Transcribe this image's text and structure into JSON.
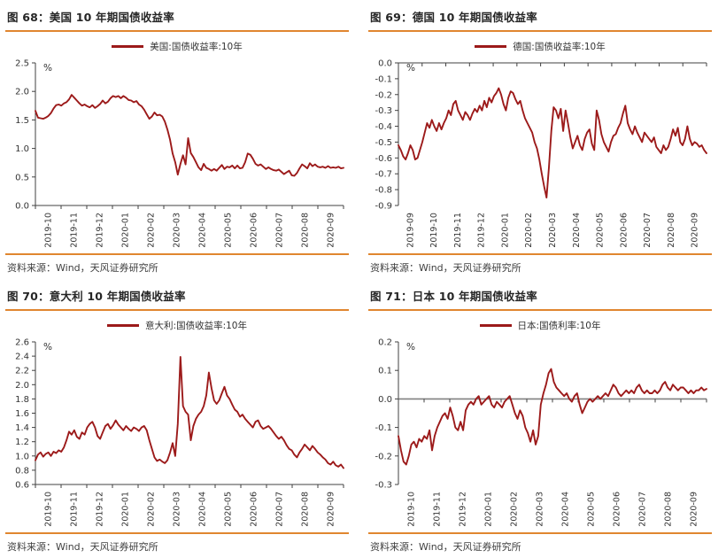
{
  "source_label": "资料来源：Wind，天风证券研究所",
  "colors": {
    "accent_orange": "#E0862F",
    "series_red": "#9C1A1A",
    "axis": "#404040",
    "zero_axis_gray": "#808080",
    "tick_text": "#333333"
  },
  "chart_data": [
    {
      "type": "line",
      "title": "图 68：美国 10 年期国债收益率",
      "legend": "美国:国债收益率:10年",
      "unit": "%",
      "ylim": [
        0.0,
        2.5
      ],
      "ytick": 0.5,
      "axis_at": 0.0,
      "axis_style": "dark",
      "legend_position": "top",
      "grid": false,
      "categories": [
        "2019-10",
        "2019-11",
        "2019-12",
        "2020-01",
        "2020-02",
        "2020-03",
        "2020-04",
        "2020-05",
        "2020-06",
        "2020-07",
        "2020-08",
        "2020-09"
      ],
      "values": [
        1.66,
        1.54,
        1.53,
        1.52,
        1.54,
        1.57,
        1.62,
        1.7,
        1.76,
        1.77,
        1.75,
        1.79,
        1.81,
        1.86,
        1.94,
        1.89,
        1.84,
        1.79,
        1.75,
        1.77,
        1.74,
        1.72,
        1.76,
        1.71,
        1.74,
        1.78,
        1.84,
        1.79,
        1.82,
        1.88,
        1.92,
        1.9,
        1.92,
        1.88,
        1.92,
        1.89,
        1.85,
        1.84,
        1.81,
        1.83,
        1.77,
        1.74,
        1.68,
        1.6,
        1.52,
        1.56,
        1.63,
        1.58,
        1.59,
        1.56,
        1.47,
        1.33,
        1.15,
        0.91,
        0.76,
        0.54,
        0.73,
        0.88,
        0.72,
        1.18,
        0.92,
        0.85,
        0.76,
        0.67,
        0.62,
        0.73,
        0.66,
        0.64,
        0.61,
        0.64,
        0.61,
        0.66,
        0.71,
        0.64,
        0.68,
        0.67,
        0.7,
        0.65,
        0.7,
        0.65,
        0.66,
        0.76,
        0.91,
        0.89,
        0.82,
        0.73,
        0.7,
        0.72,
        0.68,
        0.64,
        0.67,
        0.64,
        0.62,
        0.61,
        0.63,
        0.59,
        0.55,
        0.58,
        0.61,
        0.53,
        0.52,
        0.57,
        0.65,
        0.72,
        0.69,
        0.65,
        0.74,
        0.69,
        0.72,
        0.68,
        0.67,
        0.68,
        0.66,
        0.69,
        0.66,
        0.67,
        0.66,
        0.68,
        0.65,
        0.66
      ]
    },
    {
      "type": "line",
      "title": "图 69：德国 10 年期国债收益率",
      "legend": "德国:国债收益率:10年",
      "unit": "%",
      "ylim": [
        -0.9,
        0.0
      ],
      "ytick": 0.1,
      "axis_at": 0.0,
      "axis_style": "dark",
      "legend_position": "top",
      "grid": false,
      "categories": [
        "2019-09",
        "2019-10",
        "2019-11",
        "2019-12",
        "2020-01",
        "2020-02",
        "2020-03",
        "2020-04",
        "2020-05",
        "2020-06",
        "2020-07",
        "2020-08",
        "2020-09"
      ],
      "values": [
        -0.52,
        -0.55,
        -0.59,
        -0.61,
        -0.57,
        -0.52,
        -0.55,
        -0.61,
        -0.6,
        -0.55,
        -0.5,
        -0.44,
        -0.38,
        -0.41,
        -0.36,
        -0.4,
        -0.43,
        -0.38,
        -0.42,
        -0.38,
        -0.35,
        -0.3,
        -0.33,
        -0.26,
        -0.24,
        -0.3,
        -0.33,
        -0.36,
        -0.31,
        -0.33,
        -0.36,
        -0.32,
        -0.29,
        -0.31,
        -0.27,
        -0.3,
        -0.24,
        -0.28,
        -0.22,
        -0.25,
        -0.21,
        -0.19,
        -0.16,
        -0.2,
        -0.26,
        -0.3,
        -0.22,
        -0.18,
        -0.19,
        -0.23,
        -0.26,
        -0.24,
        -0.3,
        -0.35,
        -0.38,
        -0.41,
        -0.44,
        -0.5,
        -0.54,
        -0.61,
        -0.7,
        -0.78,
        -0.85,
        -0.66,
        -0.43,
        -0.28,
        -0.3,
        -0.35,
        -0.29,
        -0.43,
        -0.3,
        -0.38,
        -0.47,
        -0.54,
        -0.5,
        -0.46,
        -0.52,
        -0.55,
        -0.48,
        -0.44,
        -0.42,
        -0.51,
        -0.55,
        -0.3,
        -0.36,
        -0.45,
        -0.5,
        -0.53,
        -0.56,
        -0.5,
        -0.46,
        -0.45,
        -0.41,
        -0.38,
        -0.32,
        -0.27,
        -0.38,
        -0.42,
        -0.45,
        -0.4,
        -0.44,
        -0.47,
        -0.5,
        -0.44,
        -0.46,
        -0.48,
        -0.5,
        -0.47,
        -0.53,
        -0.55,
        -0.57,
        -0.52,
        -0.55,
        -0.53,
        -0.48,
        -0.42,
        -0.46,
        -0.41,
        -0.5,
        -0.52,
        -0.48,
        -0.4,
        -0.48,
        -0.52,
        -0.5,
        -0.51,
        -0.53,
        -0.52,
        -0.55,
        -0.57
      ]
    },
    {
      "type": "line",
      "title": "图 70：意大利 10 年期国债收益率",
      "legend": "意大利:国债收益率:10年",
      "unit": "%",
      "ylim": [
        0.6,
        2.6
      ],
      "ytick": 0.2,
      "axis_at": 0.6,
      "axis_style": "dark",
      "legend_position": "top",
      "grid": false,
      "categories": [
        "2019-10",
        "2019-11",
        "2019-12",
        "2020-01",
        "2020-02",
        "2020-03",
        "2020-04",
        "2020-05",
        "2020-06",
        "2020-07",
        "2020-08",
        "2020-09"
      ],
      "values": [
        0.94,
        1.02,
        1.05,
        0.99,
        1.03,
        1.05,
        1.0,
        1.06,
        1.04,
        1.08,
        1.06,
        1.12,
        1.22,
        1.34,
        1.3,
        1.36,
        1.27,
        1.24,
        1.33,
        1.3,
        1.4,
        1.45,
        1.48,
        1.4,
        1.28,
        1.24,
        1.33,
        1.42,
        1.45,
        1.38,
        1.43,
        1.5,
        1.44,
        1.4,
        1.36,
        1.42,
        1.38,
        1.35,
        1.4,
        1.38,
        1.35,
        1.4,
        1.42,
        1.36,
        1.22,
        1.1,
        0.98,
        0.93,
        0.95,
        0.92,
        0.9,
        0.94,
        1.05,
        1.18,
        1.0,
        1.45,
        2.39,
        1.7,
        1.62,
        1.58,
        1.22,
        1.42,
        1.52,
        1.58,
        1.62,
        1.7,
        1.85,
        2.17,
        1.95,
        1.78,
        1.73,
        1.78,
        1.88,
        1.97,
        1.85,
        1.8,
        1.72,
        1.65,
        1.62,
        1.55,
        1.58,
        1.52,
        1.48,
        1.44,
        1.4,
        1.48,
        1.5,
        1.42,
        1.38,
        1.4,
        1.42,
        1.38,
        1.33,
        1.28,
        1.24,
        1.27,
        1.22,
        1.15,
        1.1,
        1.08,
        1.02,
        0.98,
        1.05,
        1.1,
        1.16,
        1.12,
        1.08,
        1.14,
        1.1,
        1.05,
        1.02,
        0.98,
        0.95,
        0.9,
        0.88,
        0.92,
        0.87,
        0.85,
        0.88,
        0.83
      ]
    },
    {
      "type": "line",
      "title": "图 71：日本 10 年期国债收益率",
      "legend": "日本:国债利率:10年",
      "unit": "%",
      "ylim": [
        -0.3,
        0.2
      ],
      "ytick": 0.1,
      "axis_at": 0.0,
      "axis_style": "gray",
      "legend_position": "top",
      "grid": false,
      "categories": [
        "2019-10",
        "2019-11",
        "2019-12",
        "2020-01",
        "2020-02",
        "2020-03",
        "2020-04",
        "2020-05",
        "2020-06",
        "2020-07",
        "2020-08",
        "2020-09"
      ],
      "values": [
        -0.13,
        -0.18,
        -0.22,
        -0.23,
        -0.2,
        -0.16,
        -0.15,
        -0.17,
        -0.14,
        -0.15,
        -0.13,
        -0.14,
        -0.11,
        -0.18,
        -0.13,
        -0.1,
        -0.08,
        -0.06,
        -0.05,
        -0.07,
        -0.03,
        -0.06,
        -0.1,
        -0.11,
        -0.08,
        -0.11,
        -0.04,
        -0.02,
        -0.01,
        -0.02,
        0.0,
        0.01,
        -0.02,
        -0.01,
        0.0,
        0.01,
        -0.02,
        -0.03,
        -0.01,
        -0.02,
        -0.03,
        -0.01,
        0.0,
        0.01,
        -0.02,
        -0.05,
        -0.07,
        -0.04,
        -0.06,
        -0.1,
        -0.12,
        -0.15,
        -0.11,
        -0.16,
        -0.13,
        -0.02,
        0.02,
        0.05,
        0.09,
        0.105,
        0.06,
        0.04,
        0.03,
        0.02,
        0.01,
        0.02,
        0.0,
        -0.01,
        0.01,
        0.02,
        -0.02,
        -0.05,
        -0.03,
        -0.01,
        0.0,
        -0.01,
        0.0,
        0.01,
        0.0,
        0.01,
        0.02,
        0.01,
        0.03,
        0.05,
        0.04,
        0.02,
        0.01,
        0.02,
        0.03,
        0.02,
        0.03,
        0.02,
        0.04,
        0.05,
        0.03,
        0.02,
        0.03,
        0.02,
        0.02,
        0.03,
        0.02,
        0.03,
        0.05,
        0.06,
        0.04,
        0.03,
        0.05,
        0.04,
        0.03,
        0.04,
        0.04,
        0.03,
        0.02,
        0.03,
        0.02,
        0.03,
        0.03,
        0.04,
        0.03,
        0.035
      ]
    }
  ]
}
